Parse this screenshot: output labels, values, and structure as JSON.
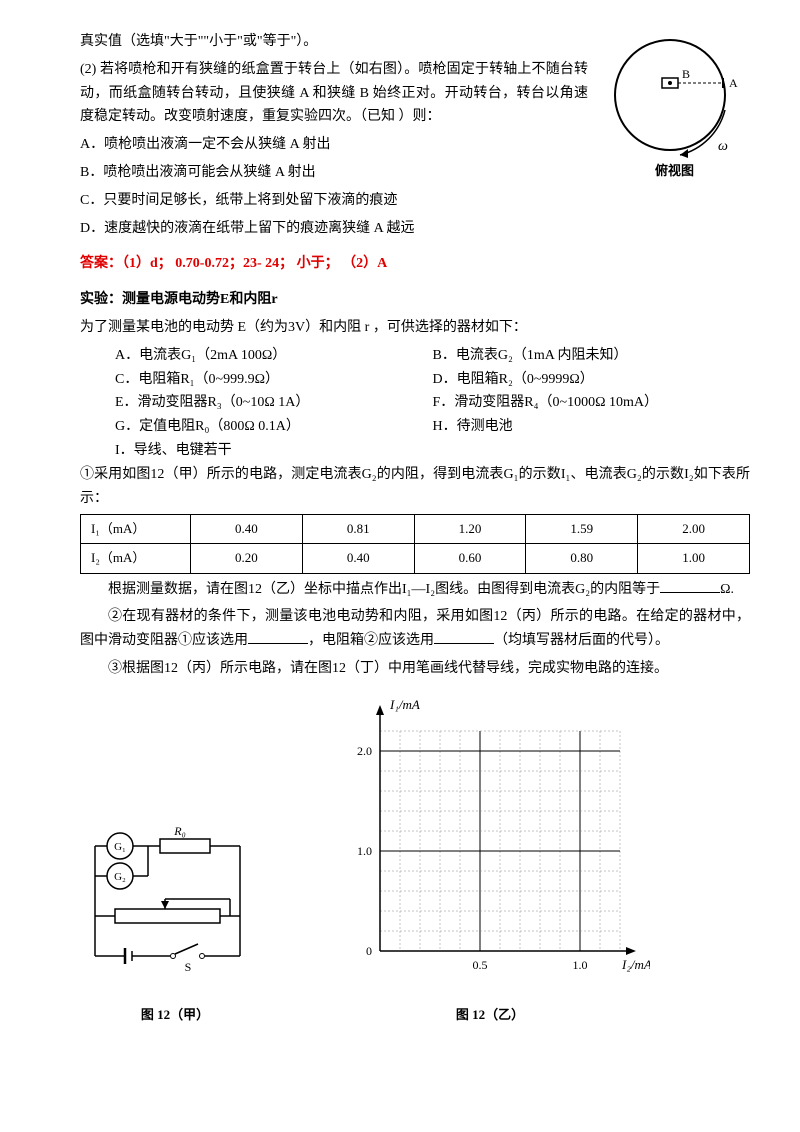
{
  "q1": {
    "line0": "真实值（选填\"大于\"\"小于\"或\"等于\"）。",
    "line1": "(2) 若将喷枪和开有狭缝的纸盒置于转台上（如右图）。喷枪固定于转轴上不随台转动，而纸盒随转台转动，且使狭缝 A 和狭缝 B 始终正对。开动转台，转台以角速度稳定转动。改变喷射速度，重复实验四次。（已知  ）则：",
    "optA": "A．喷枪喷出液滴一定不会从狭缝 A 射出",
    "optB": "B．喷枪喷出液滴可能会从狭缝 A 射出",
    "optC": "C．只要时间足够长，纸带上将到处留下液滴的痕迹",
    "optD": "D．速度越快的液滴在纸带上留下的痕迹离狭缝 A 越远",
    "diagram": {
      "label_A": "A",
      "label_B": "B",
      "omega": "ω",
      "caption": "俯视图",
      "circle_stroke": "#000",
      "bg": "#ffffff"
    }
  },
  "answer1": "答案：（1）d；  0.70-0.72；23- 24；  小于；  （2）A",
  "exp": {
    "title": "实验：测量电源电动势E和内阻r",
    "intro": "为了测量某电池的电动势  E（约为3V）和内阻  r ，可供选择的器材如下：",
    "items": {
      "A": "A．电流表G₁（2mA   100Ω）",
      "B": "B．电流表G₂（1mA   内阻未知）",
      "C": "C．电阻箱R₁（0~999.9Ω）",
      "D": "D．电阻箱R₂（0~9999Ω）",
      "E": "E．滑动变阻器R₃（0~10Ω   1A）",
      "F": "F．滑动变阻器R₄（0~1000Ω   10mA）",
      "G": "G．定值电阻R₀（800Ω   0.1A）",
      "H": "H．待测电池",
      "I": "I．导线、电键若干"
    },
    "p1a": "①采用如图12（甲）所示的电路，测定电流表G₂的内阻，得到电流表G₁的示数I₁、电流表G₂的示数I₂如下表所示：",
    "table": {
      "row1_label": "I₁（mA）",
      "row1": [
        "0.40",
        "0.81",
        "1.20",
        "1.59",
        "2.00"
      ],
      "row2_label": "I₂（mA）",
      "row2": [
        "0.20",
        "0.40",
        "0.60",
        "0.80",
        "1.00"
      ]
    },
    "p1b_pre": "根据测量数据，请在图12（乙）坐标中描点作出I₁—I₂图线。由图得到电流表G₂的内阻等于",
    "p1b_post": "Ω.",
    "p2a": "②在现有器材的条件下，测量该电池电动势和内阻，采用如图12（丙）所示的电路。在给定的器材中，图中滑动变阻器①应该选用",
    "p2b": "，电阻箱②应该选用",
    "p2c": "（均填写器材后面的代号）。",
    "p3": "③根据图12（丙）所示电路，请在图12（丁）中用笔画线代替导线，完成实物电路的连接。"
  },
  "fig12a": {
    "caption": "图 12（甲）",
    "G1": "G₁",
    "G2": "G₂",
    "R0": "R₀",
    "S": "S"
  },
  "fig12b": {
    "caption": "图 12（乙）",
    "ylabel": "I₁/mA",
    "xlabel": "I₂/mA",
    "yticks": [
      "0",
      "1.0",
      "2.0"
    ],
    "xticks": [
      "0",
      "0.5",
      "1.0"
    ],
    "grid_color": "#888",
    "axis_color": "#000",
    "xlim": [
      0,
      1.2
    ],
    "ylim": [
      0,
      2.4
    ],
    "major_x": 0.5,
    "major_y": 1.0,
    "minor_div": 5
  }
}
